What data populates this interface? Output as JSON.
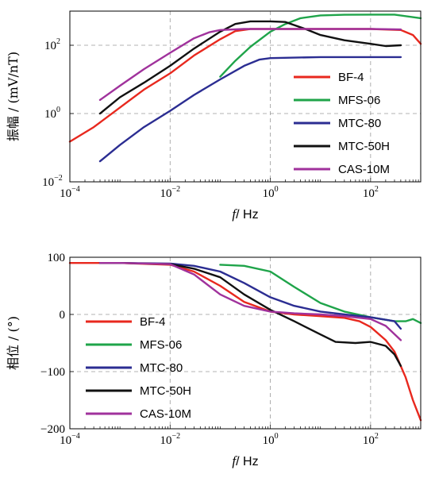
{
  "chart_data": [
    {
      "type": "line",
      "xlabel_var": "f",
      "xlabel_unit": "/ Hz",
      "ylabel": "振幅 / (mV/nT)",
      "xscale": "log",
      "yscale": "log",
      "xlim": [
        0.0001,
        1000
      ],
      "ylim": [
        0.01,
        1000
      ],
      "x_ticks": [
        {
          "base": "10",
          "exp": "−4"
        },
        {
          "base": "10",
          "exp": "−2"
        },
        {
          "base": "10",
          "exp": "0"
        },
        {
          "base": "10",
          "exp": "2"
        }
      ],
      "y_ticks": [
        {
          "base": "10",
          "exp": "−2"
        },
        {
          "base": "10",
          "exp": "0"
        },
        {
          "base": "10",
          "exp": "2"
        }
      ],
      "grid": true,
      "legend_position": "right",
      "series": [
        {
          "name": "BF-4",
          "color": "#e8281e",
          "points": [
            [
              0.0001,
              0.15
            ],
            [
              0.0003,
              0.4
            ],
            [
              0.001,
              1.5
            ],
            [
              0.003,
              5
            ],
            [
              0.01,
              15
            ],
            [
              0.03,
              50
            ],
            [
              0.1,
              150
            ],
            [
              0.2,
              260
            ],
            [
              0.4,
              300
            ],
            [
              1,
              300
            ],
            [
              10,
              300
            ],
            [
              100,
              300
            ],
            [
              400,
              280
            ],
            [
              700,
              200
            ],
            [
              1000,
              110
            ]
          ]
        },
        {
          "name": "MFS-06",
          "color": "#1fa44a",
          "points": [
            [
              0.1,
              12
            ],
            [
              0.2,
              35
            ],
            [
              0.4,
              90
            ],
            [
              1,
              250
            ],
            [
              2,
              420
            ],
            [
              4,
              620
            ],
            [
              10,
              750
            ],
            [
              30,
              780
            ],
            [
              100,
              790
            ],
            [
              300,
              790
            ],
            [
              1000,
              620
            ]
          ]
        },
        {
          "name": "MTC-80",
          "color": "#2b2d92",
          "points": [
            [
              0.0004,
              0.04
            ],
            [
              0.001,
              0.12
            ],
            [
              0.003,
              0.4
            ],
            [
              0.01,
              1.2
            ],
            [
              0.03,
              3.5
            ],
            [
              0.1,
              10
            ],
            [
              0.3,
              25
            ],
            [
              0.6,
              38
            ],
            [
              1,
              42
            ],
            [
              10,
              45
            ],
            [
              100,
              45
            ],
            [
              400,
              45
            ]
          ]
        },
        {
          "name": "MTC-50H",
          "color": "#111111",
          "points": [
            [
              0.0004,
              1
            ],
            [
              0.001,
              3
            ],
            [
              0.003,
              8
            ],
            [
              0.01,
              25
            ],
            [
              0.03,
              80
            ],
            [
              0.1,
              250
            ],
            [
              0.2,
              420
            ],
            [
              0.4,
              500
            ],
            [
              1,
              500
            ],
            [
              2,
              480
            ],
            [
              5,
              300
            ],
            [
              10,
              200
            ],
            [
              30,
              140
            ],
            [
              100,
              110
            ],
            [
              200,
              95
            ],
            [
              400,
              100
            ]
          ]
        },
        {
          "name": "CAS-10M",
          "color": "#a0329c",
          "points": [
            [
              0.0004,
              2.5
            ],
            [
              0.001,
              6.5
            ],
            [
              0.003,
              20
            ],
            [
              0.01,
              60
            ],
            [
              0.03,
              160
            ],
            [
              0.06,
              240
            ],
            [
              0.1,
              280
            ],
            [
              0.3,
              300
            ],
            [
              1,
              300
            ],
            [
              10,
              300
            ],
            [
              100,
              300
            ],
            [
              400,
              290
            ]
          ]
        }
      ]
    },
    {
      "type": "line",
      "xlabel_var": "f",
      "xlabel_unit": "/ Hz",
      "ylabel": "相位 / (°)",
      "xscale": "log",
      "yscale": "linear",
      "xlim": [
        0.0001,
        1000
      ],
      "ylim": [
        -200,
        100
      ],
      "x_ticks": [
        {
          "base": "10",
          "exp": "−4"
        },
        {
          "base": "10",
          "exp": "−2"
        },
        {
          "base": "10",
          "exp": "0"
        },
        {
          "base": "10",
          "exp": "2"
        }
      ],
      "y_ticks": [
        "100",
        "0",
        "−100",
        "−200"
      ],
      "y_tick_values": [
        100,
        0,
        -100,
        -200
      ],
      "grid": true,
      "legend_position": "left",
      "series": [
        {
          "name": "BF-4",
          "color": "#e8281e",
          "points": [
            [
              0.0001,
              90
            ],
            [
              0.001,
              90
            ],
            [
              0.01,
              87
            ],
            [
              0.03,
              75
            ],
            [
              0.1,
              50
            ],
            [
              0.3,
              22
            ],
            [
              1,
              5
            ],
            [
              3,
              0
            ],
            [
              10,
              -3
            ],
            [
              30,
              -6
            ],
            [
              60,
              -12
            ],
            [
              100,
              -22
            ],
            [
              200,
              -45
            ],
            [
              300,
              -65
            ],
            [
              500,
              -110
            ],
            [
              700,
              -150
            ],
            [
              1000,
              -185
            ]
          ]
        },
        {
          "name": "MFS-06",
          "color": "#1fa44a",
          "points": [
            [
              0.1,
              87
            ],
            [
              0.3,
              85
            ],
            [
              1,
              75
            ],
            [
              3,
              48
            ],
            [
              10,
              20
            ],
            [
              30,
              5
            ],
            [
              100,
              -5
            ],
            [
              300,
              -12
            ],
            [
              500,
              -12
            ],
            [
              700,
              -8
            ],
            [
              1000,
              -15
            ]
          ]
        },
        {
          "name": "MTC-80",
          "color": "#2b2d92",
          "points": [
            [
              0.0004,
              90
            ],
            [
              0.001,
              90
            ],
            [
              0.01,
              89
            ],
            [
              0.03,
              85
            ],
            [
              0.1,
              75
            ],
            [
              0.3,
              55
            ],
            [
              1,
              30
            ],
            [
              3,
              15
            ],
            [
              10,
              5
            ],
            [
              30,
              0
            ],
            [
              100,
              -5
            ],
            [
              300,
              -12
            ],
            [
              400,
              -25
            ]
          ]
        },
        {
          "name": "MTC-50H",
          "color": "#111111",
          "points": [
            [
              0.0004,
              90
            ],
            [
              0.001,
              90
            ],
            [
              0.01,
              88
            ],
            [
              0.03,
              80
            ],
            [
              0.1,
              65
            ],
            [
              0.3,
              35
            ],
            [
              1,
              8
            ],
            [
              3,
              -12
            ],
            [
              10,
              -35
            ],
            [
              20,
              -48
            ],
            [
              50,
              -50
            ],
            [
              100,
              -48
            ],
            [
              200,
              -55
            ],
            [
              300,
              -70
            ],
            [
              400,
              -90
            ]
          ]
        },
        {
          "name": "CAS-10M",
          "color": "#a0329c",
          "points": [
            [
              0.0004,
              90
            ],
            [
              0.001,
              90
            ],
            [
              0.01,
              88
            ],
            [
              0.03,
              70
            ],
            [
              0.1,
              35
            ],
            [
              0.3,
              15
            ],
            [
              1,
              5
            ],
            [
              3,
              2
            ],
            [
              10,
              0
            ],
            [
              30,
              -3
            ],
            [
              100,
              -8
            ],
            [
              200,
              -20
            ],
            [
              400,
              -45
            ]
          ]
        }
      ]
    }
  ]
}
